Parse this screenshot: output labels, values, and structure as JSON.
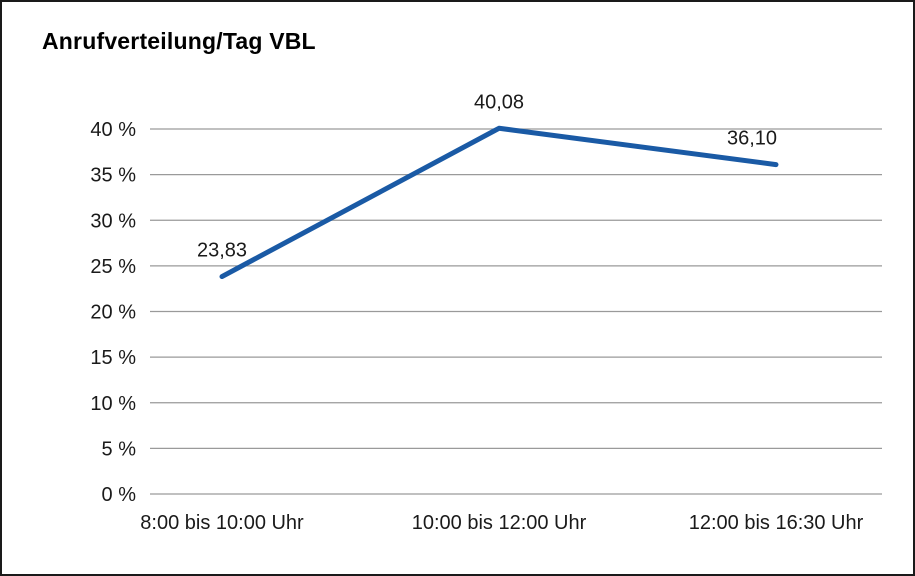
{
  "chart_data": {
    "type": "line",
    "title": "Anrufverteilung/Tag VBL",
    "categories": [
      "8:00 bis 10:00 Uhr",
      "10:00 bis 12:00 Uhr",
      "12:00 bis 16:30 Uhr"
    ],
    "values": [
      23.83,
      40.08,
      36.1
    ],
    "value_labels": [
      "23,83",
      "40,08",
      "36,10"
    ],
    "ylim": [
      0,
      40
    ],
    "ytick_step": 5,
    "ytick_labels": [
      "0 %",
      "5 %",
      "10 %",
      "15 %",
      "20 %",
      "25 %",
      "30 %",
      "35 %",
      "40 %"
    ],
    "grid": true,
    "legend": "none",
    "colors": {
      "line": "#1a5aa5",
      "grid": "#9a9a9a",
      "text": "#1a1a1a",
      "title": "#000000",
      "background": "#ffffff",
      "border": "#1a1a1a"
    }
  }
}
